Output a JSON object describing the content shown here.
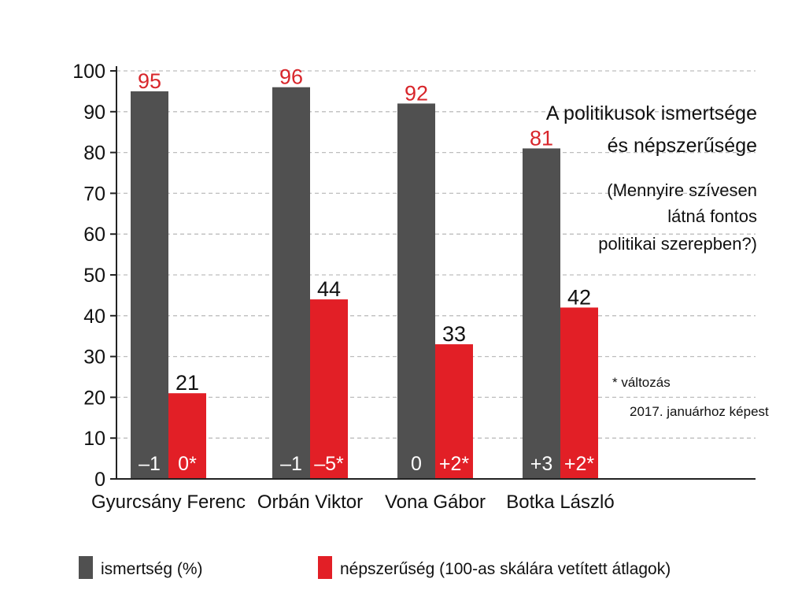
{
  "chart_data": {
    "type": "bar",
    "title": [
      "A politikusok ismertsége",
      "és népszerűsége"
    ],
    "subtitle": [
      "(Mennyire szívesen",
      "látná fontos",
      "politikai szerepben?)"
    ],
    "note": [
      "* változás",
      "2017. januárhoz képest"
    ],
    "categories": [
      "Gyurcsány Ferenc",
      "Orbán Viktor",
      "Vona Gábor",
      "Botka László"
    ],
    "ylim": [
      0,
      100
    ],
    "yticks": [
      "0",
      "10",
      "20",
      "30",
      "40",
      "50",
      "60",
      "70",
      "80",
      "90",
      "100"
    ],
    "grid": true,
    "series": [
      {
        "name": "ismertség (%)",
        "color": "#505050",
        "values": [
          95,
          96,
          92,
          81
        ],
        "labels": [
          "95",
          "96",
          "92",
          "81"
        ],
        "changes": [
          "–1",
          "–1",
          "0",
          "+3"
        ]
      },
      {
        "name": "népszerűség (100-as skálára vetített átlagok)",
        "color": "#e21f26",
        "values": [
          21,
          44,
          33,
          42
        ],
        "labels": [
          "21",
          "44",
          "33",
          "42"
        ],
        "changes": [
          "0*",
          "–5*",
          "+2*",
          "+2*"
        ]
      }
    ]
  }
}
